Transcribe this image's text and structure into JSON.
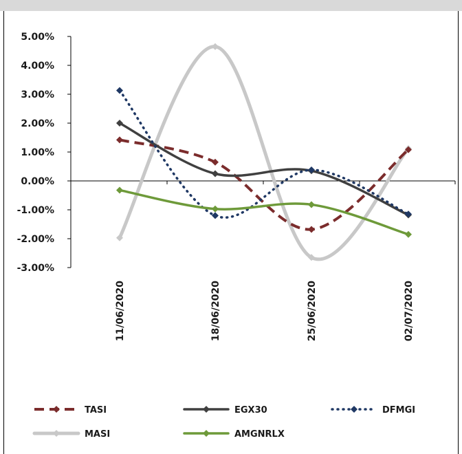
{
  "chart_data": {
    "type": "line",
    "title": "",
    "xlabel": "",
    "ylabel": "",
    "categories": [
      "11/06/2020",
      "18/06/2020",
      "25/06/2020",
      "02/07/2020"
    ],
    "ylim": [
      -3,
      5
    ],
    "yticks": [
      5,
      4,
      3,
      2,
      1,
      0,
      -1,
      -2,
      -3
    ],
    "ytick_labels": [
      "5.00%",
      "4.00%",
      "3.00%",
      "2.00%",
      "1.00%",
      "0.00%",
      "-1.00%",
      "-2.00%",
      "-3.00%"
    ],
    "grid": false,
    "legend_position": "bottom",
    "series": [
      {
        "name": "TASI",
        "values": [
          1.42,
          0.65,
          -1.68,
          1.08
        ],
        "color": "#7b2c2c",
        "style": "dashed-thick",
        "marker": "diamond"
      },
      {
        "name": "EGX30",
        "values": [
          2.0,
          0.25,
          0.35,
          -1.18
        ],
        "color": "#404040",
        "style": "solid",
        "marker": "diamond"
      },
      {
        "name": "DFMGI",
        "values": [
          3.13,
          -1.2,
          0.38,
          -1.15
        ],
        "color": "#1f3864",
        "style": "dotted",
        "marker": "diamond"
      },
      {
        "name": "MASI",
        "values": [
          -1.97,
          4.65,
          -2.65,
          1.12
        ],
        "color": "#c8c8c8",
        "style": "solid-thick",
        "marker": "diamond"
      },
      {
        "name": "AMGNRLX",
        "values": [
          -0.32,
          -0.97,
          -0.82,
          -1.85
        ],
        "color": "#6e9a3a",
        "style": "solid",
        "marker": "diamond"
      }
    ]
  }
}
